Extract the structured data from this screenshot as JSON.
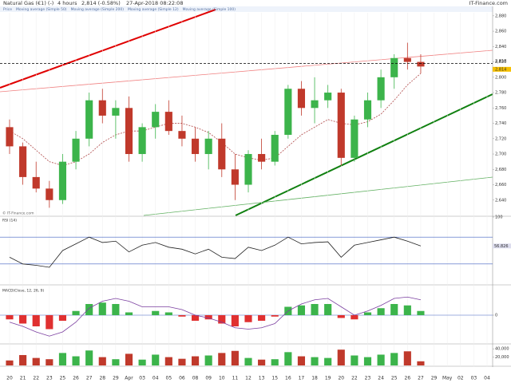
{
  "header": {
    "instrument": "Natural Gas (€1) (-)",
    "timeframe": "4 hours",
    "quote": "2,814 (-0.58%)",
    "timestamp": "27-Apr-2018 08:22:08",
    "brand": "IT-Finance.com",
    "indicators": [
      "Price",
      "Moving average (Simple 50)",
      "Moving average (Simple 200)",
      "Moving average (Simple 12)",
      "Moving average (Simple 100)"
    ]
  },
  "chart_data": [
    {
      "type": "candlestick",
      "watermark": "© IT-Finance.com",
      "categories": [
        "20",
        "21",
        "22",
        "23",
        "25",
        "26",
        "27",
        "28",
        "29",
        "Apr",
        "03",
        "04",
        "05",
        "06",
        "08",
        "09",
        "10",
        "11",
        "12",
        "13",
        "15",
        "16",
        "17",
        "18",
        "19",
        "20",
        "22",
        "23",
        "24",
        "25",
        "26",
        "27",
        "29",
        "May",
        "02",
        "03",
        "04"
      ],
      "open": [
        2735,
        2710,
        2670,
        2655,
        2640,
        2690,
        2720,
        2770,
        2750,
        2760,
        2700,
        2735,
        2755,
        2730,
        2720,
        2700,
        2720,
        2680,
        2660,
        2700,
        2690,
        2725,
        2785,
        2760,
        2770,
        2780,
        2695,
        2745,
        2770,
        2800,
        2825,
        2820,
        null,
        null,
        null,
        null,
        null
      ],
      "high": [
        2745,
        2715,
        2690,
        2665,
        2700,
        2730,
        2780,
        2785,
        2770,
        2775,
        2740,
        2765,
        2770,
        2750,
        2735,
        2730,
        2740,
        2700,
        2705,
        2720,
        2730,
        2790,
        2795,
        2800,
        2790,
        2785,
        2750,
        2780,
        2810,
        2830,
        2845,
        2830,
        null,
        null,
        null,
        null,
        null
      ],
      "low": [
        2700,
        2660,
        2650,
        2630,
        2635,
        2680,
        2710,
        2740,
        2720,
        2690,
        2690,
        2720,
        2725,
        2710,
        2690,
        2680,
        2670,
        2640,
        2650,
        2680,
        2685,
        2720,
        2750,
        2740,
        2760,
        2685,
        2690,
        2735,
        2760,
        2785,
        2810,
        2805,
        null,
        null,
        null,
        null,
        null
      ],
      "close": [
        2710,
        2670,
        2655,
        2640,
        2690,
        2720,
        2770,
        2750,
        2760,
        2700,
        2735,
        2755,
        2730,
        2720,
        2700,
        2720,
        2680,
        2660,
        2700,
        2690,
        2725,
        2785,
        2760,
        2770,
        2780,
        2695,
        2745,
        2770,
        2800,
        2825,
        2820,
        2814,
        null,
        null,
        null,
        null,
        null
      ],
      "last_close_label": "2,814",
      "up_color": "#3cb44b",
      "down_color": "#c0392b",
      "series": [
        {
          "name": "Moving average (Simple 12)",
          "color": "#b04a4a",
          "values": [
            2730,
            2720,
            2705,
            2690,
            2685,
            2690,
            2700,
            2715,
            2725,
            2730,
            2730,
            2735,
            2740,
            2740,
            2735,
            2728,
            2715,
            2700,
            2695,
            2692,
            2695,
            2710,
            2725,
            2735,
            2745,
            2740,
            2738,
            2742,
            2752,
            2770,
            2790,
            2805,
            null,
            null,
            null,
            null,
            null
          ]
        }
      ],
      "price_line": {
        "value": 2818,
        "label": "2,818"
      },
      "ylim": [
        2620,
        2884
      ],
      "yticks": [
        {
          "value": 2640,
          "label": "2,640"
        },
        {
          "value": 2660,
          "label": "2,660"
        },
        {
          "value": 2680,
          "label": "2,680"
        },
        {
          "value": 2700,
          "label": "2,700"
        },
        {
          "value": 2720,
          "label": "2,720"
        },
        {
          "value": 2740,
          "label": "2,740"
        },
        {
          "value": 2760,
          "label": "2,760"
        },
        {
          "value": 2780,
          "label": "2,780"
        },
        {
          "value": 2800,
          "label": "2,800"
        },
        {
          "value": 2820,
          "label": "2,820"
        },
        {
          "value": 2840,
          "label": "2,840"
        },
        {
          "value": 2860,
          "label": "2,860"
        },
        {
          "value": 2880,
          "label": "2,880"
        }
      ]
    },
    {
      "type": "line",
      "title": "RSI (14)",
      "color": "#222222",
      "values": [
        40,
        30,
        28,
        25,
        50,
        60,
        70,
        62,
        64,
        48,
        58,
        62,
        55,
        52,
        45,
        52,
        40,
        38,
        55,
        50,
        58,
        70,
        60,
        62,
        63,
        40,
        58,
        62,
        66,
        70,
        64,
        56.826,
        null,
        null,
        null,
        null,
        null
      ],
      "levels": [
        30,
        70
      ],
      "ylim": [
        0,
        100
      ],
      "yticks": [
        100
      ]
    },
    {
      "type": "macd",
      "title": "MACD(Close, 12, 26, 9)",
      "histogram": [
        -3,
        -6,
        -8,
        -10,
        -4,
        3,
        8,
        9,
        8,
        2,
        0,
        3,
        2,
        -1,
        -4,
        -3,
        -6,
        -8,
        -5,
        -4,
        -1,
        6,
        7,
        8,
        8,
        -2,
        -3,
        2,
        5,
        8,
        7,
        3,
        null,
        null,
        null,
        null,
        null
      ],
      "series": [
        {
          "name": "MACD",
          "color": "#7b3fa0",
          "values": [
            -5,
            -8,
            -12,
            -15,
            -12,
            -5,
            5,
            10,
            12,
            10,
            6,
            6,
            6,
            4,
            0,
            -2,
            -5,
            -9,
            -10,
            -9,
            -6,
            3,
            8,
            11,
            12,
            6,
            0,
            3,
            7,
            12,
            13,
            11,
            null,
            null,
            null,
            null,
            null
          ]
        }
      ],
      "up_color": "#3cb44b",
      "down_color": "#e03030",
      "ylim": [
        -20,
        20
      ],
      "yticks": [
        0
      ]
    },
    {
      "type": "bar",
      "values": [
        12000,
        25000,
        18000,
        15000,
        30000,
        22000,
        36000,
        20000,
        15000,
        28000,
        14000,
        26000,
        20000,
        16000,
        22000,
        24000,
        30000,
        35000,
        18000,
        14000,
        15000,
        32000,
        22000,
        20000,
        18000,
        38000,
        24000,
        20000,
        26000,
        30000,
        34000,
        10000,
        null,
        null,
        null,
        null,
        null
      ],
      "ylim": [
        0,
        48000
      ],
      "yticks": [
        {
          "value": 20000,
          "label": "20,000"
        },
        {
          "value": 40000,
          "label": "40,000"
        }
      ]
    }
  ]
}
